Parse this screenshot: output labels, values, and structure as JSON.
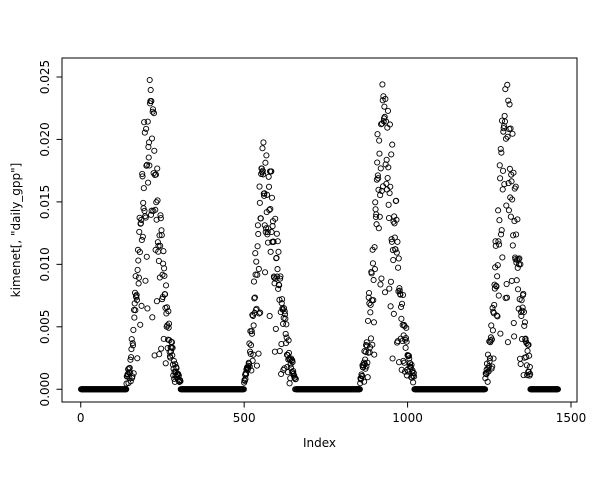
{
  "figure": {
    "background": "#ffffff",
    "foreground": "#000000"
  },
  "chart_data": {
    "type": "scatter",
    "title": "",
    "series_name": "daily_gpp",
    "xlabel": "Index",
    "ylabel": "kimenet[, \"daily_gpp\"]",
    "xlim": [
      1,
      1460
    ],
    "ylim": [
      0,
      0.0255
    ],
    "x_ticks": [
      0,
      500,
      1000,
      1500
    ],
    "x_tick_labels": [
      "0",
      "500",
      "1000",
      "1500"
    ],
    "y_ticks": [
      0,
      0.005,
      0.01,
      0.015,
      0.02,
      0.025
    ],
    "y_tick_labels": [
      "0.000",
      "0.005",
      "0.010",
      "0.015",
      "0.020",
      "0.025"
    ],
    "grid": false,
    "box": true,
    "legend": "none",
    "marker": {
      "shape": "open-circle",
      "radius": 2.6,
      "color": "#000000",
      "stroke_width": 0.9
    },
    "n_points": 1460,
    "baseline_value": 0,
    "seasonal_peaks": [
      {
        "center": 205,
        "amplitude": 0.0253,
        "sigma_rise": 26,
        "sigma_fall": 38,
        "start": 140,
        "end": 305
      },
      {
        "center": 560,
        "amplitude": 0.0203,
        "sigma_rise": 24,
        "sigma_fall": 42,
        "start": 500,
        "end": 660
      },
      {
        "center": 925,
        "amplitude": 0.0253,
        "sigma_rise": 28,
        "sigma_fall": 40,
        "start": 855,
        "end": 1020
      },
      {
        "center": 1300,
        "amplitude": 0.0247,
        "sigma_rise": 26,
        "sigma_fall": 36,
        "start": 1238,
        "end": 1375
      }
    ],
    "noise": {
      "seed": 1337,
      "mult_min": 0.55,
      "mult_range": 0.45,
      "dropout_prob": 0.22,
      "dropout_min": 0.2,
      "dropout_range": 0.55,
      "zero_threshold": 0.0004
    },
    "description": "Daily GPP time series over ~4 years: zero baseline between growing seasons with four bell-shaped summer peaks (maxima ~0.025, ~0.020, ~0.025, ~0.0245) centered near index 205, 560, 925 and 1300."
  }
}
